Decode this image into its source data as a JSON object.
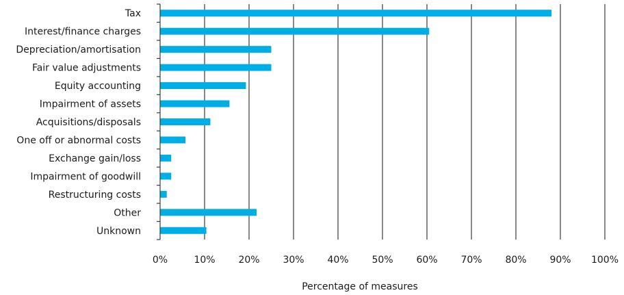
{
  "chart_data": {
    "type": "bar",
    "orientation": "horizontal",
    "categories": [
      "Tax",
      "Interest/finance charges",
      "Depreciation/amortisation",
      "Fair value adjustments",
      "Equity accounting",
      "Impairment of assets",
      "Acquisitions/disposals",
      "One off or abnormal costs",
      "Exchange gain/loss",
      "Impairment of goodwill",
      "Restructuring costs",
      "Other",
      "Unknown"
    ],
    "values": [
      88,
      60.5,
      25,
      25,
      19.3,
      15.6,
      11.3,
      5.7,
      2.5,
      2.5,
      1.5,
      21.7,
      10.4
    ],
    "xlabel": "Percentage of measures",
    "ylabel": "",
    "xlim": [
      0,
      100
    ],
    "xticks": [
      0,
      10,
      20,
      30,
      40,
      50,
      60,
      70,
      80,
      90,
      100
    ],
    "xtick_labels": [
      "0%",
      "10%",
      "20%",
      "30%",
      "40%",
      "50%",
      "60%",
      "70%",
      "80%",
      "90%",
      "100%"
    ],
    "grid": "vertical",
    "bar_color": "#00aee6",
    "grid_color": "#3a3a3a"
  }
}
